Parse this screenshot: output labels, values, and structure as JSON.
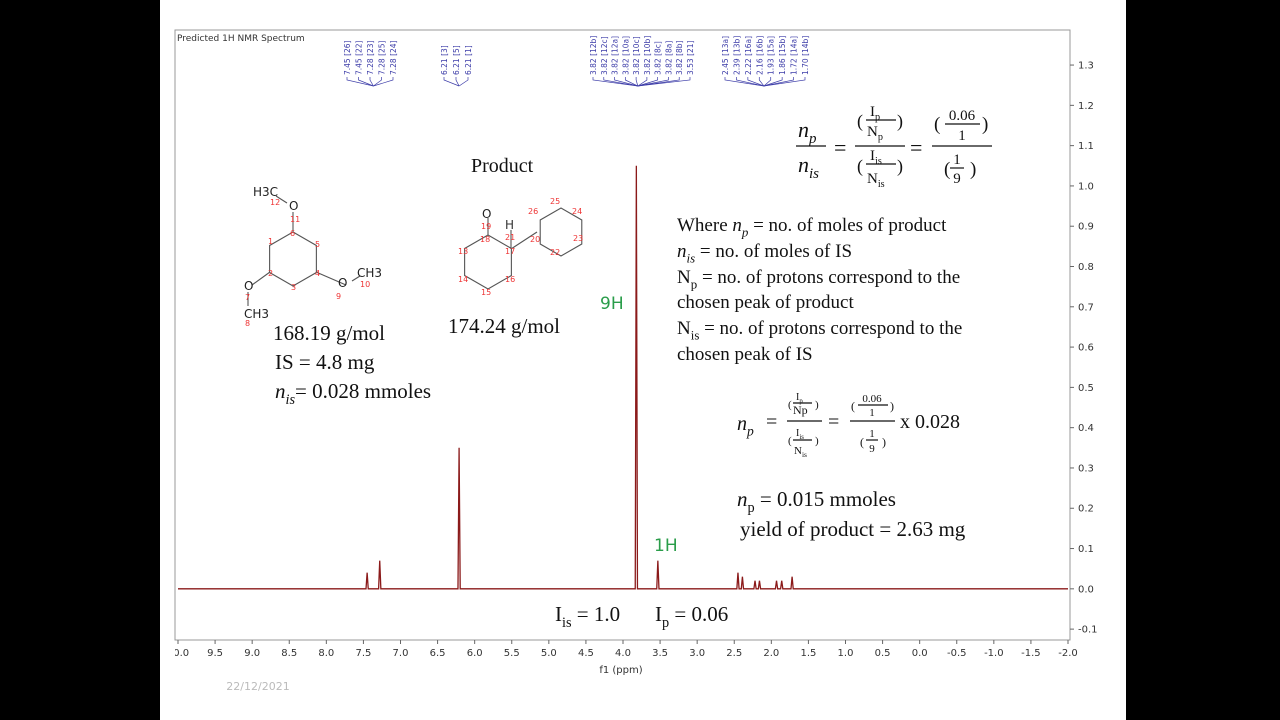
{
  "chart_data": {
    "type": "line",
    "title": "Predicted 1H NMR Spectrum",
    "xlabel": "f1 (ppm)",
    "x": [
      10,
      7.465,
      7.45,
      7.435,
      7.295,
      7.28,
      7.265,
      6.225,
      6.21,
      6.195,
      3.835,
      3.82,
      3.805,
      3.545,
      3.53,
      3.515,
      2.465,
      2.45,
      2.435,
      2.405,
      2.39,
      2.375,
      2.235,
      2.22,
      2.205,
      2.175,
      2.16,
      2.145,
      1.945,
      1.93,
      1.915,
      1.875,
      1.86,
      1.845,
      1.735,
      1.72,
      1.705,
      -2
    ],
    "series": [
      {
        "color": "#8b1a1a",
        "values": [
          0,
          0,
          0.04,
          0,
          0,
          0.07,
          0,
          0,
          0.35,
          0,
          0,
          1.05,
          0,
          0,
          0.07,
          0,
          0,
          0.04,
          0,
          0,
          0.03,
          0,
          0,
          0.02,
          0,
          0,
          0.02,
          0,
          0,
          0.02,
          0,
          0,
          0.02,
          0,
          0,
          0.03,
          0,
          0
        ]
      }
    ],
    "xlim": [
      10,
      -2
    ],
    "xticks": [
      {
        "value": 10,
        "label": "10.0"
      },
      9.5,
      {
        "value": 9,
        "label": "9.0"
      },
      8.5,
      {
        "value": 8,
        "label": "8.0"
      },
      7.5,
      {
        "value": 7,
        "label": "7.0"
      },
      6.5,
      {
        "value": 6,
        "label": "6.0"
      },
      5.5,
      {
        "value": 5,
        "label": "5.0"
      },
      4.5,
      {
        "value": 4,
        "label": "4.0"
      },
      3.5,
      {
        "value": 3,
        "label": "3.0"
      },
      2.5,
      {
        "value": 2,
        "label": "2.0"
      },
      1.5,
      {
        "value": 1,
        "label": "1.0"
      },
      0.5,
      {
        "value": 0,
        "label": "0.0"
      },
      -0.5,
      {
        "value": -1,
        "label": "-1.0"
      },
      -1.5,
      {
        "value": -2,
        "label": "-2.0"
      }
    ],
    "ylim": [
      -0.127,
      1.387
    ],
    "yticks": [
      -0.1,
      {
        "value": 0,
        "label": "0.0"
      },
      0.1,
      0.2,
      0.3,
      0.4,
      0.5,
      0.6,
      0.7,
      0.8,
      0.9,
      {
        "value": 1,
        "label": "1.0"
      },
      1.1,
      1.2,
      1.3
    ],
    "peak_labels": [
      "7.45 [26]",
      "7.45 [22]",
      "7.28 [23]",
      "7.28 [25]",
      "7.28 [24]",
      "6.21 [3]",
      "6.21 [5]",
      "6.21 [1]",
      "3.82 [12b]",
      "3.82 [12c]",
      "3.82 [12a]",
      "3.82 [10a]",
      "3.82 [10c]",
      "3.82 [10b]",
      "3.82 [8c]",
      "3.82 [8a]",
      "3.82 [8b]",
      "3.53 [21]",
      "2.45 [13a]",
      "2.39 [13b]",
      "2.22 [16a]",
      "2.16 [16b]",
      "1.93 [15a]",
      "1.86 [15b]",
      "1.72 [14a]",
      "1.70 [14b]"
    ],
    "peak_annotations": [
      "9H",
      "1H"
    ]
  },
  "is_atoms": [
    "O",
    "H3C",
    "12",
    "11",
    "1",
    "6",
    "5",
    "2",
    "3",
    "4",
    "O",
    "9",
    "CH3",
    "10",
    "O",
    "7",
    "CH3",
    "8"
  ],
  "product_atoms": [
    "O",
    "19",
    "18",
    "H",
    "21",
    "17",
    "13",
    "14",
    "15",
    "16",
    "20",
    "26",
    "25",
    "24",
    "23",
    "22"
  ],
  "notes": {
    "product": "Product",
    "is_mw": "168.19 g/mol",
    "is_mass": "IS = 4.8 mg",
    "n_is": [
      "n",
      "is",
      "= 0.028 mmoles"
    ],
    "product_mw": "174.24 g/mol",
    "where": [
      "Where ",
      "n",
      "p",
      " = no. of moles of product"
    ],
    "l2": [
      "n",
      "is",
      " = no. of moles of IS"
    ],
    "l3": [
      "N",
      "p",
      " = no. of protons correspond to the"
    ],
    "l4": "chosen peak of product",
    "l5": [
      "N",
      "is",
      " = no. of protons correspond to the"
    ],
    "l6": "chosen peak of IS",
    "np_result": [
      "n",
      "p",
      " = 0.015 mmoles"
    ],
    "yield": "yield of product = 2.63 mg",
    "i_is": [
      "I",
      "is",
      " = 1.0"
    ],
    "i_p": [
      "I",
      "p",
      " = 0.06"
    ]
  },
  "formula": {
    "n": "n",
    "p": "p",
    "is": "is",
    "I": "I",
    "N": "N",
    "eq": "=",
    "lp": "(",
    "rp": ")",
    "a": "0.06",
    "b": "1",
    "c": "1",
    "d": "9",
    "times": "x 0.028"
  },
  "date": "22/12/2021"
}
